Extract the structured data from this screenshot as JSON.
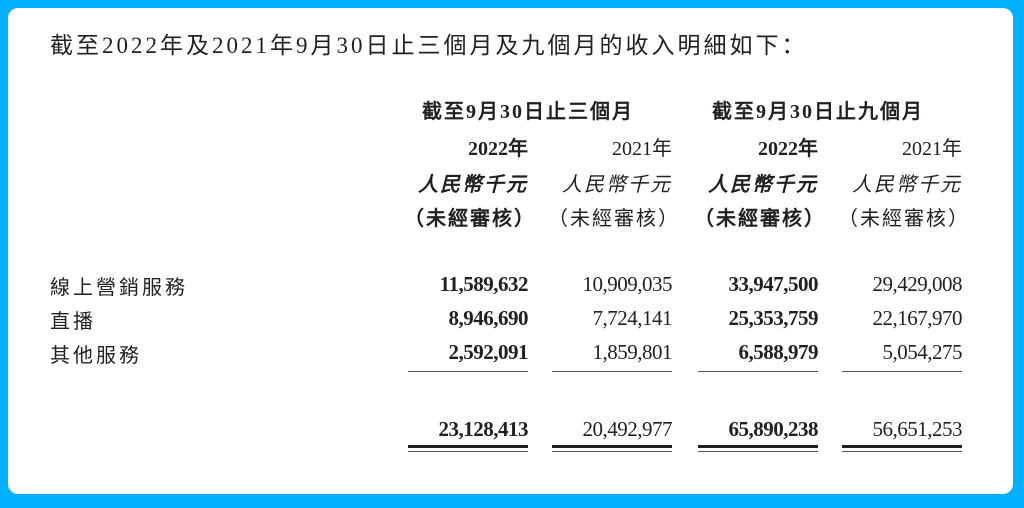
{
  "intro": "截至2022年及2021年9月30日止三個月及九個月的收入明細如下：",
  "groups": [
    "截至9月30日止三個月",
    "截至9月30日止九個月"
  ],
  "columns": [
    {
      "year": "2022年",
      "unit": "人民幣千元",
      "note": "（未經審核）",
      "bold": true
    },
    {
      "year": "2021年",
      "unit": "人民幣千元",
      "note": "（未經審核）",
      "bold": false
    },
    {
      "year": "2022年",
      "unit": "人民幣千元",
      "note": "（未經審核）",
      "bold": true
    },
    {
      "year": "2021年",
      "unit": "人民幣千元",
      "note": "（未經審核）",
      "bold": false
    }
  ],
  "rows": [
    {
      "label": "線上營銷服務",
      "values": [
        "11,589,632",
        "10,909,035",
        "33,947,500",
        "29,429,008"
      ]
    },
    {
      "label": "直播",
      "values": [
        "8,946,690",
        "7,724,141",
        "25,353,759",
        "22,167,970"
      ]
    },
    {
      "label": "其他服務",
      "values": [
        "2,592,091",
        "1,859,801",
        "6,588,979",
        "5,054,275"
      ]
    }
  ],
  "totals": [
    "23,128,413",
    "20,492,977",
    "65,890,238",
    "56,651,253"
  ],
  "colors": {
    "frame": "#00b0ff",
    "text": "#231f20"
  }
}
